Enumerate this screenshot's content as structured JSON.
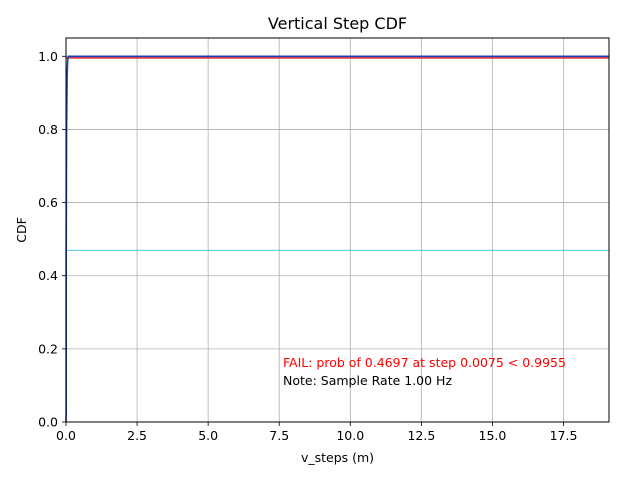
{
  "chart_data": {
    "type": "line",
    "title": "Vertical Step CDF",
    "xlabel": "v_steps (m)",
    "ylabel": "CDF",
    "xlim": [
      0,
      19.1
    ],
    "ylim": [
      0,
      1.05
    ],
    "x_ticks": [
      0,
      2.5,
      5,
      7.5,
      10,
      12.5,
      15,
      17.5
    ],
    "x_tick_labels": [
      "0.0",
      "2.5",
      "5.0",
      "7.5",
      "10.0",
      "12.5",
      "15.0",
      "17.5"
    ],
    "y_ticks": [
      0,
      0.2,
      0.4,
      0.6,
      0.8,
      1.0
    ],
    "y_tick_labels": [
      "0.0",
      "0.2",
      "0.4",
      "0.6",
      "0.8",
      "1.0"
    ],
    "grid": true,
    "series": [
      {
        "color": "#1f3fbf",
        "x": [
          0,
          0.0075,
          0.0075,
          0.02,
          0.04,
          0.06,
          0.08,
          19.1
        ],
        "y": [
          0,
          0.03,
          0.4697,
          0.8,
          0.95,
          0.99,
          1.0,
          1.0
        ]
      }
    ],
    "reference_lines": [
      {
        "y": 0.9955,
        "color": "#d62728"
      },
      {
        "y": 0.4697,
        "color": "#17becf"
      }
    ],
    "annotations": [
      {
        "text": "FAIL: prob of 0.4697 at step 0.0075 < 0.9955",
        "color": "#ff0000"
      },
      {
        "text": "Note: Sample Rate 1.00 Hz",
        "color": "#000000"
      }
    ]
  }
}
